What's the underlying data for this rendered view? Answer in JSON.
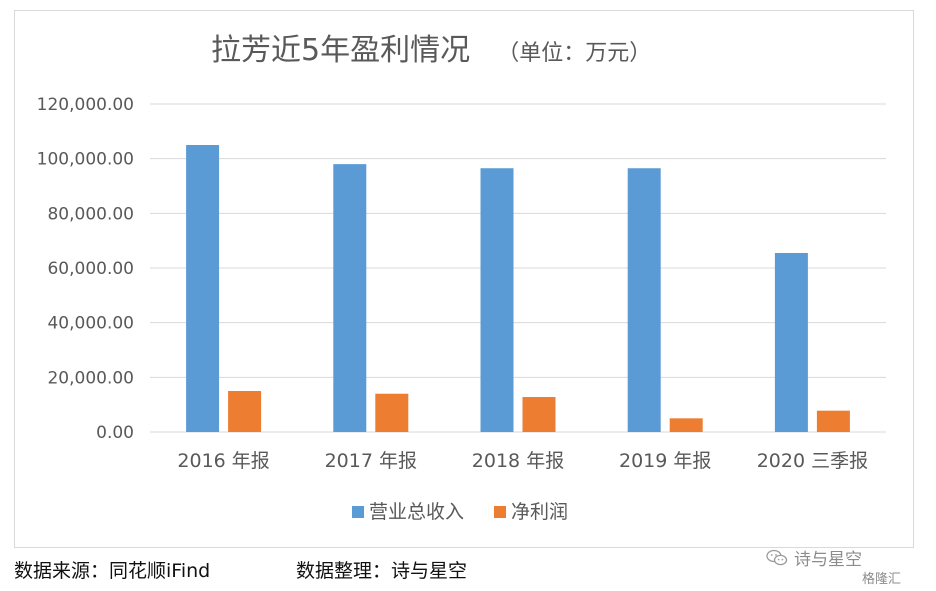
{
  "chart_data": {
    "type": "bar",
    "title": "拉芳近5年盈利情况",
    "unit_note": "（单位：万元）",
    "categories": [
      "2016 年报",
      "2017 年报",
      "2018 年报",
      "2019 年报",
      "2020 三季报"
    ],
    "series": [
      {
        "name": "营业总收入",
        "color": "#5b9bd5",
        "values": [
          105000,
          98000,
          96500,
          96500,
          65500
        ]
      },
      {
        "name": "净利润",
        "color": "#ed7d31",
        "values": [
          15000,
          14000,
          12800,
          5000,
          7800
        ]
      }
    ],
    "ylim": [
      0,
      120000
    ],
    "y_ticks": [
      "0.00",
      "20,000.00",
      "40,000.00",
      "60,000.00",
      "80,000.00",
      "100,000.00",
      "120,000.00"
    ],
    "y_tick_values": [
      0,
      20000,
      40000,
      60000,
      80000,
      100000,
      120000
    ],
    "grid": true,
    "legend_position": "bottom"
  },
  "footer": {
    "source": "数据来源：同花顺iFind",
    "editor": "数据整理：诗与星空"
  },
  "watermark": {
    "author": "诗与星空",
    "site": "格隆汇",
    "wechat_icon": "wechat-icon"
  }
}
